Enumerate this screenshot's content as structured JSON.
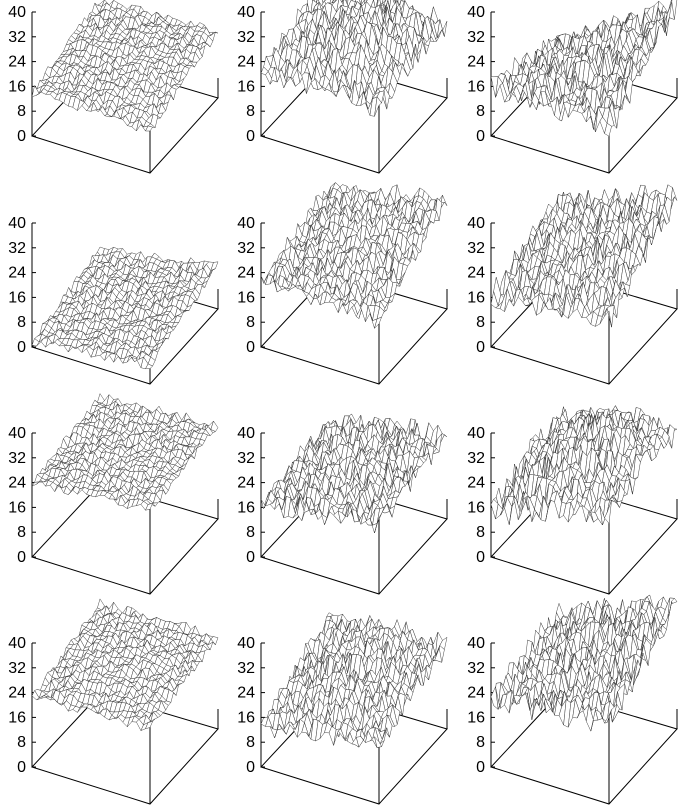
{
  "figure": {
    "rows": 4,
    "cols": 3
  },
  "chart_data": [
    {
      "type": "surface",
      "zlim": [
        0,
        40
      ],
      "z_ticks": [
        "0",
        "8",
        "16",
        "24",
        "32",
        "40"
      ],
      "surface": {
        "front_left": 14,
        "left_back": 20,
        "back_right": 21,
        "front_right": 13,
        "peak": 24,
        "roughness": 1.5
      }
    },
    {
      "type": "surface",
      "zlim": [
        0,
        40
      ],
      "z_ticks": [
        "0",
        "8",
        "16",
        "24",
        "32",
        "40"
      ],
      "surface": {
        "front_left": 20,
        "left_back": 24,
        "back_right": 22,
        "front_right": 20,
        "peak": 35,
        "roughness": 4
      }
    },
    {
      "type": "surface",
      "zlim": [
        0,
        40
      ],
      "z_ticks": [
        "0",
        "8",
        "16",
        "24",
        "32",
        "40"
      ],
      "surface": {
        "front_left": 16,
        "left_back": 6,
        "back_right": 30,
        "front_right": 14,
        "peak": 31,
        "roughness": 4.5
      }
    },
    {
      "type": "surface",
      "zlim": [
        0,
        40
      ],
      "z_ticks": [
        "0",
        "8",
        "16",
        "24",
        "32",
        "40"
      ],
      "surface": {
        "front_left": 2,
        "left_back": 8,
        "back_right": 14,
        "front_right": 6,
        "peak": 14,
        "roughness": 1.5
      }
    },
    {
      "type": "surface",
      "zlim": [
        0,
        40
      ],
      "z_ticks": [
        "0",
        "8",
        "16",
        "24",
        "32",
        "40"
      ],
      "surface": {
        "front_left": 21,
        "left_back": 28,
        "back_right": 36,
        "front_right": 20,
        "peak": 36,
        "roughness": 3
      }
    },
    {
      "type": "surface",
      "zlim": [
        0,
        40
      ],
      "z_ticks": [
        "0",
        "8",
        "16",
        "24",
        "32",
        "40"
      ],
      "surface": {
        "front_left": 16,
        "left_back": 24,
        "back_right": 36,
        "front_right": 20,
        "peak": 38,
        "roughness": 4
      }
    },
    {
      "type": "surface",
      "zlim": [
        0,
        40
      ],
      "z_ticks": [
        "0",
        "8",
        "16",
        "24",
        "32",
        "40"
      ],
      "surface": {
        "front_left": 24,
        "left_back": 28,
        "back_right": 30,
        "front_right": 27,
        "peak": 31,
        "roughness": 1.5
      }
    },
    {
      "type": "surface",
      "zlim": [
        0,
        40
      ],
      "z_ticks": [
        "0",
        "8",
        "16",
        "24",
        "32",
        "40"
      ],
      "surface": {
        "front_left": 16,
        "left_back": 20,
        "back_right": 26,
        "front_right": 22,
        "peak": 30,
        "roughness": 3.5
      }
    },
    {
      "type": "surface",
      "zlim": [
        0,
        40
      ],
      "z_ticks": [
        "0",
        "8",
        "16",
        "24",
        "32",
        "40"
      ],
      "surface": {
        "front_left": 14,
        "left_back": 20,
        "back_right": 26,
        "front_right": 24,
        "peak": 37,
        "roughness": 4.5
      }
    },
    {
      "type": "surface",
      "zlim": [
        0,
        40
      ],
      "z_ticks": [
        "0",
        "8",
        "16",
        "24",
        "32",
        "40"
      ],
      "surface": {
        "front_left": 22,
        "left_back": 29,
        "back_right": 29,
        "front_right": 24,
        "peak": 32,
        "roughness": 1.5
      }
    },
    {
      "type": "surface",
      "zlim": [
        0,
        40
      ],
      "z_ticks": [
        "0",
        "8",
        "16",
        "24",
        "32",
        "40"
      ],
      "surface": {
        "front_left": 12,
        "left_back": 24,
        "back_right": 26,
        "front_right": 18,
        "peak": 32,
        "roughness": 3.5
      }
    },
    {
      "type": "surface",
      "zlim": [
        0,
        40
      ],
      "z_ticks": [
        "0",
        "8",
        "16",
        "24",
        "32",
        "40"
      ],
      "surface": {
        "front_left": 22,
        "left_back": 26,
        "back_right": 41,
        "front_right": 26,
        "peak": 40,
        "roughness": 4.5
      }
    }
  ]
}
